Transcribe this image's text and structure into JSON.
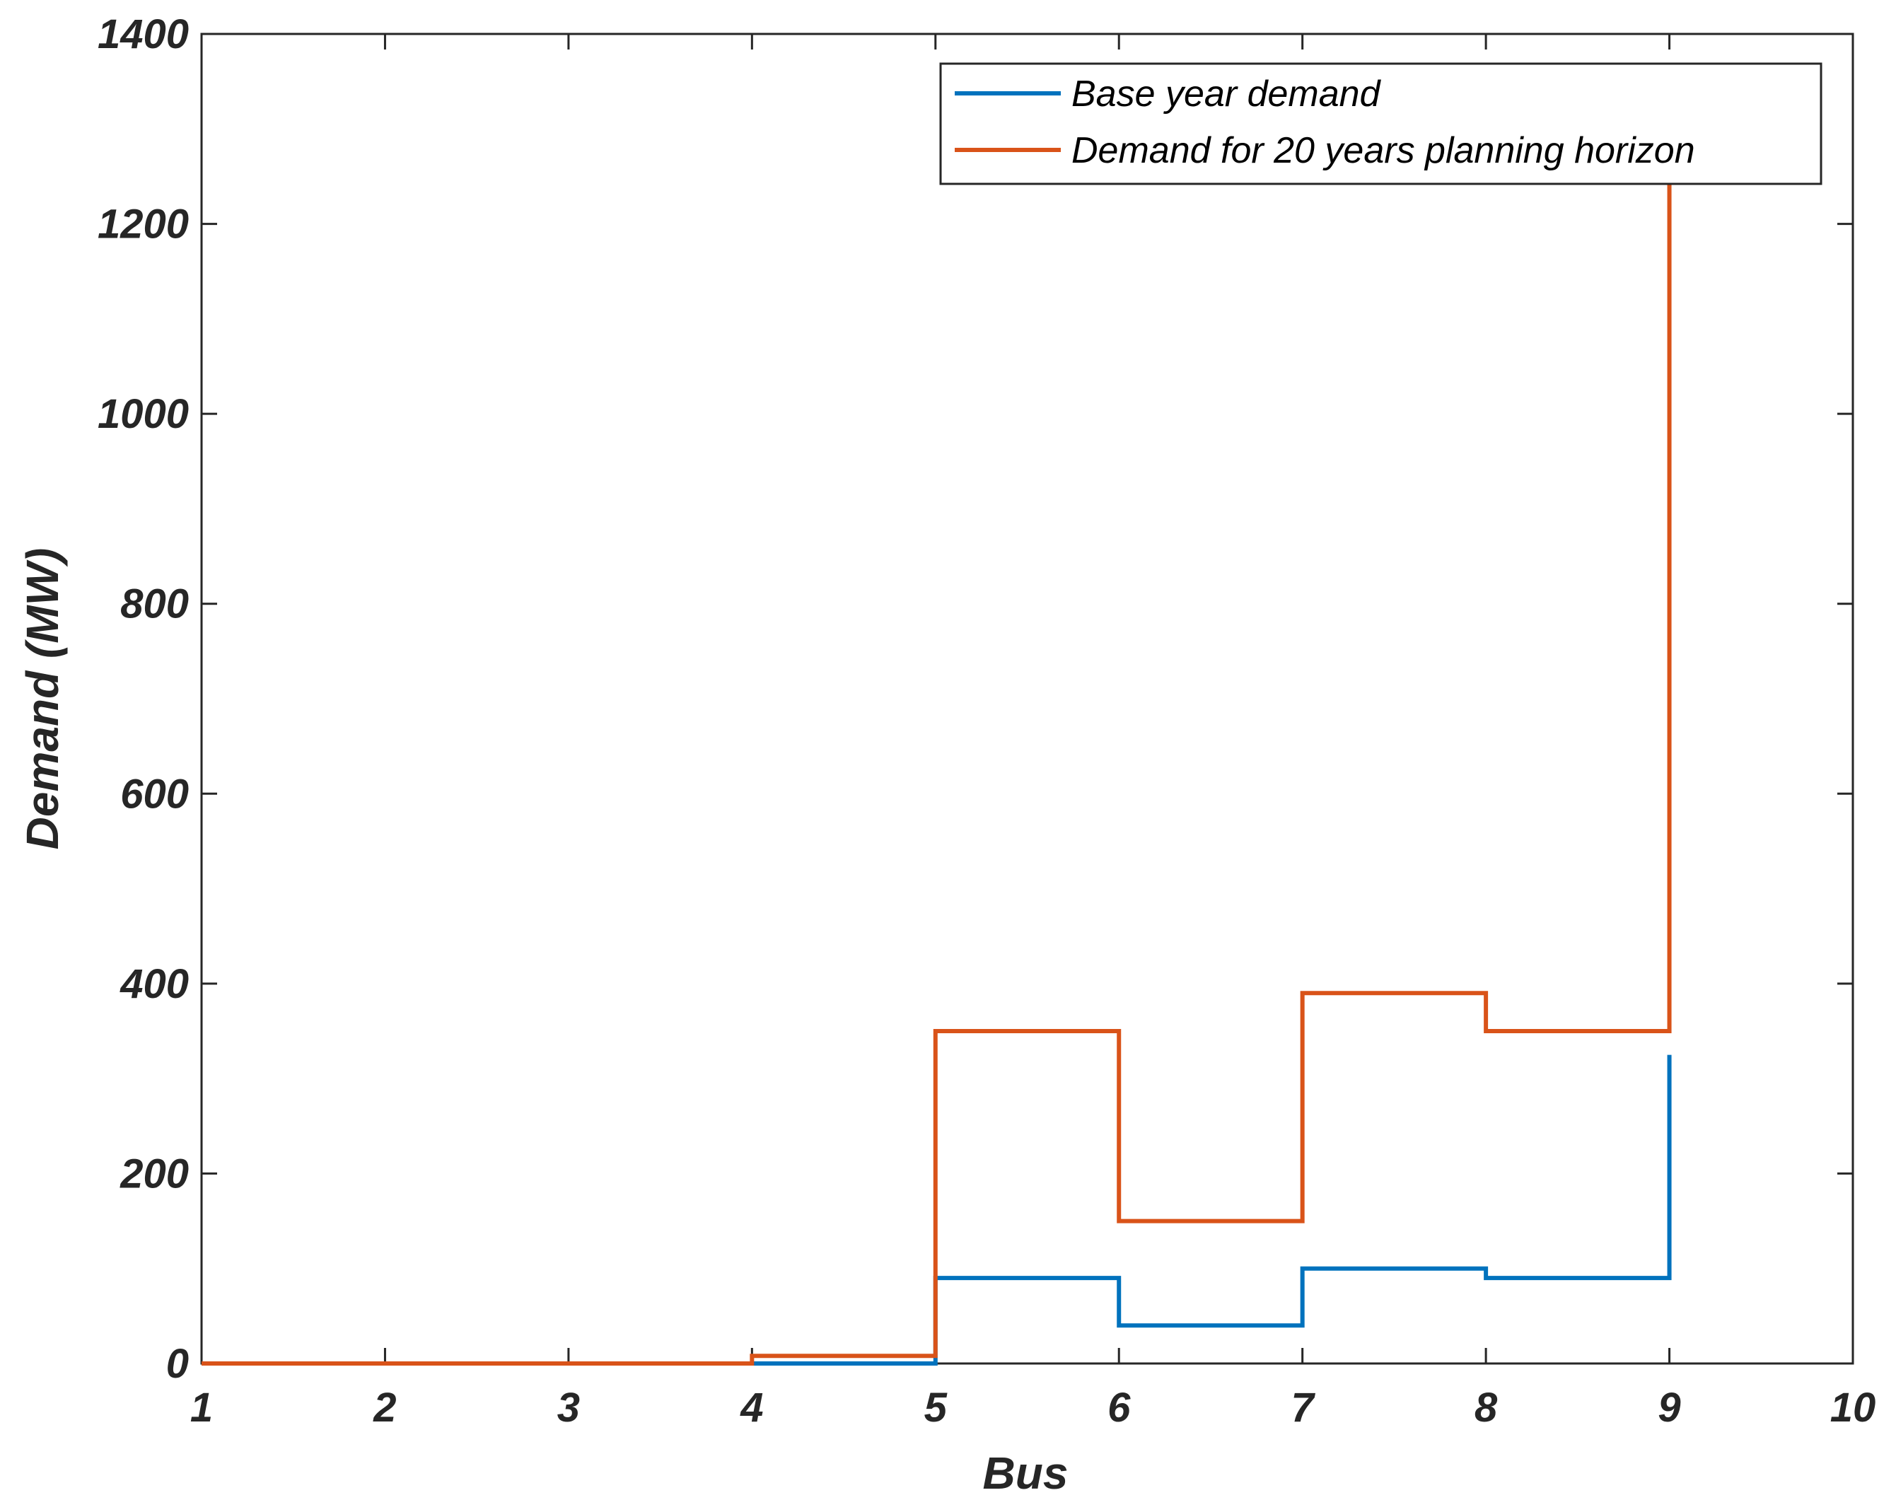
{
  "chart_data": {
    "type": "line",
    "step": "post",
    "xlabel": "Bus",
    "ylabel": "Demand (MW)",
    "xlim": [
      1,
      10
    ],
    "ylim": [
      0,
      1400
    ],
    "xticks": [
      1,
      2,
      3,
      4,
      5,
      6,
      7,
      8,
      9,
      10
    ],
    "yticks": [
      0,
      200,
      400,
      600,
      800,
      1000,
      1200,
      1400
    ],
    "grid": false,
    "legend_position": "top-right",
    "x": [
      1,
      2,
      3,
      4,
      5,
      6,
      7,
      8,
      9
    ],
    "series": [
      {
        "name": "Base year demand",
        "color": "#0072BD",
        "values": [
          0,
          0,
          0,
          0,
          90,
          40,
          100,
          90,
          325
        ]
      },
      {
        "name": "Demand for 20 years planning horizon",
        "color": "#D95319",
        "values": [
          0,
          0,
          0,
          8,
          350,
          150,
          390,
          350,
          1250
        ]
      }
    ]
  }
}
